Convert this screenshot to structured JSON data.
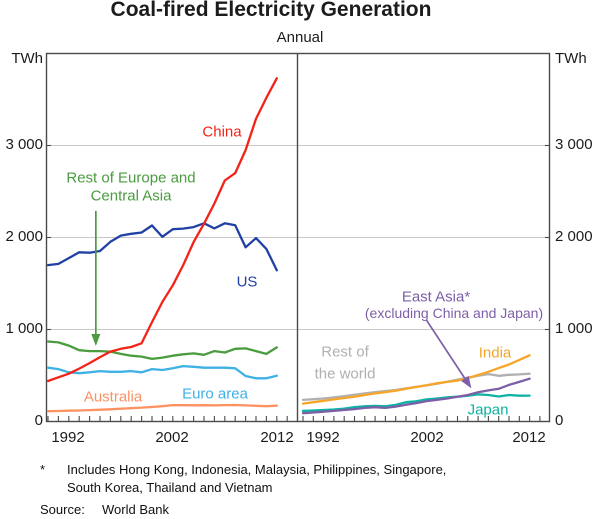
{
  "title": "Coal-fired Electricity Generation",
  "subtitle": "Annual",
  "axes": {
    "unit_left": "TWh",
    "unit_right": "TWh",
    "y_ticks": [
      "0",
      "1 000",
      "2 000",
      "3 000"
    ],
    "x_ticks": [
      "1992",
      "2002",
      "2012"
    ],
    "ylim": [
      0,
      4000
    ]
  },
  "labels": {
    "china": "China",
    "us": "US",
    "rest_europe_1": "Rest of Europe and",
    "rest_europe_2": "Central Asia",
    "australia": "Australia",
    "euro_area": "Euro area",
    "east_asia_1": "East Asia*",
    "east_asia_2": "(excluding China and Japan)",
    "rest_world_1": "Rest of",
    "rest_world_2": "the world",
    "india": "India",
    "japan": "Japan"
  },
  "footnote": {
    "marker": "*",
    "line1": "Includes Hong Kong, Indonesia, Malaysia, Philippines, Singapore,",
    "line2": "South Korea, Thailand and Vietnam"
  },
  "source": {
    "label": "Source:",
    "text": "World Bank"
  },
  "colors": {
    "china": "#f32417",
    "us": "#2041a3",
    "rest_europe": "#4a9c3f",
    "euro_area": "#3fb1e5",
    "australia": "#fc9162",
    "india": "#f7a528",
    "east_asia": "#7d5fa7",
    "japan": "#0cb2a2",
    "rest_world": "#b0b0b0",
    "grid": "#c9c9c9",
    "frame": "#4a4a4a"
  },
  "chart_data": [
    {
      "type": "line",
      "panel": "left",
      "x": [
        1990,
        1991,
        1992,
        1993,
        1994,
        1995,
        1996,
        1997,
        1998,
        1999,
        2000,
        2001,
        2002,
        2003,
        2004,
        2005,
        2006,
        2007,
        2008,
        2009,
        2010,
        2011,
        2012
      ],
      "xlim": [
        1990,
        2013.5
      ],
      "ylim": [
        0,
        4000
      ],
      "series": [
        {
          "key": "australia",
          "name": "Australia",
          "values": [
            112,
            114,
            117,
            120,
            124,
            128,
            133,
            139,
            145,
            151,
            158,
            166,
            178,
            177,
            176,
            177,
            175,
            178,
            179,
            175,
            171,
            166,
            172
          ]
        },
        {
          "key": "euro_area",
          "name": "Euro area",
          "values": [
            585,
            570,
            535,
            525,
            535,
            548,
            540,
            540,
            548,
            535,
            570,
            560,
            578,
            602,
            595,
            585,
            585,
            585,
            578,
            495,
            470,
            470,
            498
          ]
        },
        {
          "key": "rest_europe",
          "name": "Rest of Europe and Central Asia",
          "values": [
            870,
            860,
            825,
            775,
            765,
            765,
            760,
            735,
            715,
            705,
            680,
            695,
            715,
            730,
            740,
            725,
            765,
            750,
            790,
            795,
            765,
            735,
            805
          ]
        },
        {
          "key": "us",
          "name": "US",
          "values": [
            1700,
            1713,
            1776,
            1839,
            1835,
            1853,
            1953,
            2021,
            2040,
            2054,
            2130,
            2008,
            2090,
            2097,
            2113,
            2154,
            2099,
            2154,
            2133,
            1893,
            1994,
            1875,
            1643
          ]
        },
        {
          "key": "china",
          "name": "China",
          "values": [
            440,
            480,
            520,
            575,
            635,
            700,
            760,
            790,
            810,
            850,
            1080,
            1300,
            1480,
            1700,
            1950,
            2150,
            2370,
            2620,
            2700,
            2950,
            3290,
            3520,
            3730
          ]
        }
      ],
      "annotations": [
        {
          "type": "arrow",
          "color_key": "rest_europe",
          "x1": 1994.6,
          "y1": 2290,
          "x2": 1994.6,
          "y2": 820
        }
      ]
    },
    {
      "type": "line",
      "panel": "right",
      "x": [
        1990,
        1991,
        1992,
        1993,
        1994,
        1995,
        1996,
        1997,
        1998,
        1999,
        2000,
        2001,
        2002,
        2003,
        2004,
        2005,
        2006,
        2007,
        2008,
        2009,
        2010,
        2011,
        2012
      ],
      "xlim": [
        1990,
        2013.5
      ],
      "ylim": [
        0,
        4000
      ],
      "series": [
        {
          "key": "rest_world",
          "name": "Rest of the world",
          "values": [
            235,
            242,
            250,
            262,
            275,
            290,
            305,
            320,
            332,
            342,
            360,
            376,
            392,
            410,
            432,
            455,
            477,
            497,
            515,
            497,
            508,
            512,
            520
          ]
        },
        {
          "key": "japan",
          "name": "Japan",
          "values": [
            115,
            120,
            125,
            130,
            140,
            155,
            165,
            170,
            165,
            180,
            210,
            220,
            240,
            250,
            262,
            270,
            280,
            295,
            288,
            272,
            288,
            280,
            282
          ]
        },
        {
          "key": "east_asia",
          "name": "East Asia* (excluding China and Japan)",
          "values": [
            90,
            98,
            106,
            115,
            125,
            135,
            148,
            155,
            148,
            162,
            182,
            200,
            222,
            235,
            250,
            268,
            288,
            318,
            338,
            355,
            398,
            430,
            465
          ]
        },
        {
          "key": "india",
          "name": "India",
          "values": [
            195,
            210,
            225,
            240,
            255,
            270,
            288,
            305,
            320,
            335,
            355,
            375,
            395,
            415,
            430,
            445,
            470,
            505,
            540,
            580,
            620,
            670,
            720
          ]
        }
      ],
      "annotations": [
        {
          "type": "arrow",
          "color_key": "east_asia",
          "x1": 2002.0,
          "y1": 1100,
          "x2": 2006.35,
          "y2": 360
        }
      ]
    }
  ]
}
